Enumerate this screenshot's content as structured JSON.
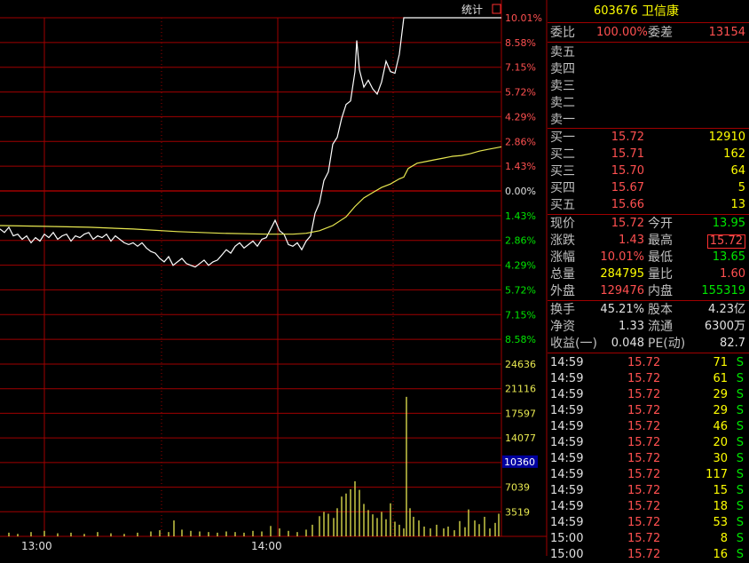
{
  "colors": {
    "grid": "#a00000",
    "price_line": "#ffffff",
    "avg_line": "#e8e850",
    "volume": "#e8e850",
    "up": "#ff5050",
    "down": "#00e600",
    "highlight_box": "#0000a0"
  },
  "chart_label": "统计",
  "chart_icon": "red-box-icon",
  "chart_data": {
    "type": "line",
    "x_tick_labels": [
      "13:00",
      "14:00"
    ],
    "price_axis_labels": [
      "10.01%",
      "8.58%",
      "7.15%",
      "5.72%",
      "4.29%",
      "2.86%",
      "1.43%",
      "0.00%",
      "1.43%",
      "2.86%",
      "4.29%",
      "5.72%",
      "7.15%",
      "8.58%"
    ],
    "volume_axis_labels": [
      "24636",
      "21116",
      "17597",
      "14077",
      "10360",
      "7039",
      "3519"
    ],
    "highlighted_volume": "10360",
    "y_range_pct": [
      -10.01,
      10.01
    ],
    "volume_range": [
      0,
      28155
    ],
    "series": [
      {
        "kind": "price",
        "x": [
          0,
          5,
          10,
          15,
          20,
          25,
          30,
          35,
          40,
          45,
          50,
          55,
          60,
          65,
          70,
          75,
          80,
          85,
          90,
          95,
          100,
          105,
          110,
          115,
          120,
          125,
          130,
          135,
          140,
          145,
          150,
          155,
          160,
          165,
          170,
          175,
          180,
          185,
          190,
          195,
          200,
          205,
          210,
          215,
          220,
          225,
          230,
          235,
          240,
          245,
          250,
          255,
          260,
          265,
          270,
          275,
          280,
          285,
          290,
          295,
          300,
          305,
          310,
          315,
          320,
          325,
          330,
          335,
          340,
          345,
          350,
          355,
          360,
          365,
          370,
          375,
          380,
          385,
          390,
          395,
          400,
          402,
          405,
          410,
          415,
          420,
          425,
          430,
          435,
          440,
          445,
          450,
          455,
          460,
          565
        ],
        "y": [
          -2.2,
          -2.4,
          -2.1,
          -2.6,
          -2.5,
          -2.8,
          -2.6,
          -3.0,
          -2.7,
          -2.9,
          -2.5,
          -2.7,
          -2.4,
          -2.8,
          -2.6,
          -2.5,
          -2.9,
          -2.6,
          -2.7,
          -2.5,
          -2.4,
          -2.8,
          -2.6,
          -2.7,
          -2.5,
          -2.9,
          -2.6,
          -2.8,
          -3.0,
          -3.1,
          -3.0,
          -3.2,
          -3.0,
          -3.3,
          -3.5,
          -3.6,
          -3.9,
          -4.1,
          -3.8,
          -4.3,
          -4.1,
          -3.9,
          -4.2,
          -4.3,
          -4.4,
          -4.2,
          -4.0,
          -4.3,
          -4.1,
          -4.0,
          -3.7,
          -3.4,
          -3.6,
          -3.2,
          -3.0,
          -3.3,
          -3.1,
          -2.9,
          -3.2,
          -2.8,
          -2.7,
          -2.2,
          -1.7,
          -2.3,
          -2.5,
          -3.1,
          -3.2,
          -3.0,
          -3.4,
          -2.9,
          -2.6,
          -1.3,
          -0.7,
          0.6,
          1.1,
          2.7,
          3.1,
          4.2,
          5.0,
          5.2,
          6.9,
          8.7,
          7.0,
          6.0,
          6.4,
          5.9,
          5.6,
          6.3,
          7.5,
          6.9,
          6.8,
          7.9,
          10.01,
          10.01,
          10.01
        ]
      },
      {
        "kind": "average",
        "x": [
          0,
          50,
          100,
          150,
          200,
          250,
          300,
          330,
          345,
          360,
          375,
          390,
          400,
          410,
          420,
          430,
          440,
          450,
          455,
          460,
          470,
          480,
          490,
          500,
          510,
          520,
          530,
          540,
          550,
          560,
          565
        ],
        "y": [
          -2.0,
          -2.05,
          -2.1,
          -2.2,
          -2.35,
          -2.45,
          -2.5,
          -2.5,
          -2.45,
          -2.3,
          -2.0,
          -1.5,
          -0.9,
          -0.4,
          -0.1,
          0.2,
          0.4,
          0.7,
          0.8,
          1.3,
          1.6,
          1.7,
          1.8,
          1.9,
          2.0,
          2.05,
          2.15,
          2.3,
          2.4,
          2.5,
          2.55
        ]
      }
    ],
    "volume_bars": [
      {
        "x": 10,
        "v": 600
      },
      {
        "x": 20,
        "v": 400
      },
      {
        "x": 35,
        "v": 700
      },
      {
        "x": 50,
        "v": 900
      },
      {
        "x": 65,
        "v": 500
      },
      {
        "x": 80,
        "v": 600
      },
      {
        "x": 95,
        "v": 400
      },
      {
        "x": 110,
        "v": 700
      },
      {
        "x": 125,
        "v": 500
      },
      {
        "x": 140,
        "v": 400
      },
      {
        "x": 155,
        "v": 600
      },
      {
        "x": 170,
        "v": 800
      },
      {
        "x": 180,
        "v": 1000
      },
      {
        "x": 190,
        "v": 700
      },
      {
        "x": 196,
        "v": 2600
      },
      {
        "x": 205,
        "v": 1100
      },
      {
        "x": 215,
        "v": 900
      },
      {
        "x": 225,
        "v": 800
      },
      {
        "x": 235,
        "v": 700
      },
      {
        "x": 245,
        "v": 600
      },
      {
        "x": 255,
        "v": 800
      },
      {
        "x": 265,
        "v": 700
      },
      {
        "x": 275,
        "v": 600
      },
      {
        "x": 285,
        "v": 900
      },
      {
        "x": 295,
        "v": 800
      },
      {
        "x": 305,
        "v": 1700
      },
      {
        "x": 315,
        "v": 1300
      },
      {
        "x": 325,
        "v": 900
      },
      {
        "x": 335,
        "v": 700
      },
      {
        "x": 345,
        "v": 1100
      },
      {
        "x": 352,
        "v": 1900
      },
      {
        "x": 360,
        "v": 3300
      },
      {
        "x": 365,
        "v": 4000
      },
      {
        "x": 370,
        "v": 3700
      },
      {
        "x": 376,
        "v": 3000
      },
      {
        "x": 380,
        "v": 4600
      },
      {
        "x": 385,
        "v": 6500
      },
      {
        "x": 390,
        "v": 7000
      },
      {
        "x": 395,
        "v": 7700
      },
      {
        "x": 400,
        "v": 9000
      },
      {
        "x": 405,
        "v": 7600
      },
      {
        "x": 410,
        "v": 5300
      },
      {
        "x": 415,
        "v": 4300
      },
      {
        "x": 420,
        "v": 3600
      },
      {
        "x": 425,
        "v": 3000
      },
      {
        "x": 430,
        "v": 4000
      },
      {
        "x": 435,
        "v": 2800
      },
      {
        "x": 440,
        "v": 5400
      },
      {
        "x": 445,
        "v": 2400
      },
      {
        "x": 450,
        "v": 1900
      },
      {
        "x": 455,
        "v": 1300
      },
      {
        "x": 458,
        "v": 22800
      },
      {
        "x": 462,
        "v": 4600
      },
      {
        "x": 466,
        "v": 3200
      },
      {
        "x": 472,
        "v": 2600
      },
      {
        "x": 478,
        "v": 1600
      },
      {
        "x": 485,
        "v": 1300
      },
      {
        "x": 492,
        "v": 1900
      },
      {
        "x": 500,
        "v": 1300
      },
      {
        "x": 505,
        "v": 1600
      },
      {
        "x": 512,
        "v": 1000
      },
      {
        "x": 518,
        "v": 2500
      },
      {
        "x": 524,
        "v": 1500
      },
      {
        "x": 528,
        "v": 4400
      },
      {
        "x": 535,
        "v": 2600
      },
      {
        "x": 540,
        "v": 2000
      },
      {
        "x": 546,
        "v": 3200
      },
      {
        "x": 552,
        "v": 1300
      },
      {
        "x": 558,
        "v": 2200
      },
      {
        "x": 562,
        "v": 3700
      }
    ]
  },
  "panel": {
    "stock_code": "603676",
    "stock_name": "卫信康",
    "weibi_label": "委比",
    "weibi_value": "100.00%",
    "weicha_label": "委差",
    "weicha_value": "13154",
    "asks": [
      {
        "label": "卖五"
      },
      {
        "label": "卖四"
      },
      {
        "label": "卖三"
      },
      {
        "label": "卖二"
      },
      {
        "label": "卖一"
      }
    ],
    "bids": [
      {
        "label": "买一",
        "price": "15.72",
        "vol": "12910"
      },
      {
        "label": "买二",
        "price": "15.71",
        "vol": "162"
      },
      {
        "label": "买三",
        "price": "15.70",
        "vol": "64"
      },
      {
        "label": "买四",
        "price": "15.67",
        "vol": "5"
      },
      {
        "label": "买五",
        "price": "15.66",
        "vol": "13"
      }
    ],
    "quote": [
      {
        "l1": "现价",
        "v1": "15.72",
        "c1": "red",
        "l2": "今开",
        "v2": "13.95",
        "c2": "green"
      },
      {
        "l1": "涨跌",
        "v1": "1.43",
        "c1": "red",
        "l2": "最高",
        "v2": "15.72",
        "c2": "red",
        "box": true
      },
      {
        "l1": "涨幅",
        "v1": "10.01%",
        "c1": "red",
        "l2": "最低",
        "v2": "13.65",
        "c2": "green"
      },
      {
        "l1": "总量",
        "v1": "284795",
        "c1": "yellow",
        "l2": "量比",
        "v2": "1.60",
        "c2": "red"
      },
      {
        "l1": "外盘",
        "v1": "129476",
        "c1": "red",
        "l2": "内盘",
        "v2": "155319",
        "c2": "green"
      }
    ],
    "fundamentals": [
      {
        "l1": "换手",
        "v1": "45.21%",
        "l2": "股本",
        "v2": "4.23亿"
      },
      {
        "l1": "净资",
        "v1": "1.33",
        "l2": "流通",
        "v2": "6300万"
      },
      {
        "l1": "收益(一)",
        "v1": "0.048",
        "l2": "PE(动)",
        "v2": "82.7"
      }
    ],
    "ticks": [
      {
        "time": "14:59",
        "price": "15.72",
        "vol": "71",
        "side": "S"
      },
      {
        "time": "14:59",
        "price": "15.72",
        "vol": "61",
        "side": "S"
      },
      {
        "time": "14:59",
        "price": "15.72",
        "vol": "29",
        "side": "S"
      },
      {
        "time": "14:59",
        "price": "15.72",
        "vol": "29",
        "side": "S"
      },
      {
        "time": "14:59",
        "price": "15.72",
        "vol": "46",
        "side": "S"
      },
      {
        "time": "14:59",
        "price": "15.72",
        "vol": "20",
        "side": "S"
      },
      {
        "time": "14:59",
        "price": "15.72",
        "vol": "30",
        "side": "S"
      },
      {
        "time": "14:59",
        "price": "15.72",
        "vol": "117",
        "side": "S"
      },
      {
        "time": "14:59",
        "price": "15.72",
        "vol": "15",
        "side": "S"
      },
      {
        "time": "14:59",
        "price": "15.72",
        "vol": "18",
        "side": "S"
      },
      {
        "time": "14:59",
        "price": "15.72",
        "vol": "53",
        "side": "S"
      },
      {
        "time": "15:00",
        "price": "15.72",
        "vol": "8",
        "side": "S"
      },
      {
        "time": "15:00",
        "price": "15.72",
        "vol": "16",
        "side": "S"
      }
    ]
  }
}
